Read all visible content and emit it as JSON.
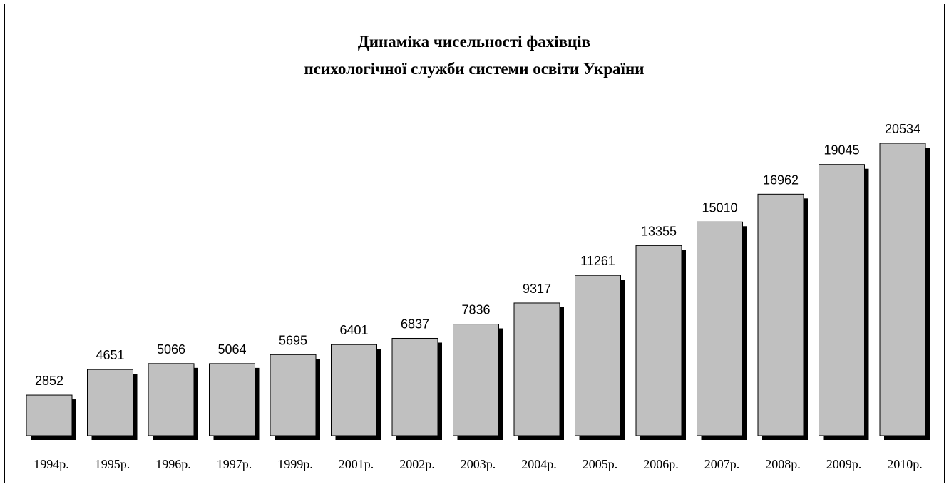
{
  "chart_data": {
    "type": "bar",
    "title": [
      "Динаміка чисельності фахівців",
      "психологічної служби системи освіти України"
    ],
    "categories": [
      "1994р.",
      "1995р.",
      "1996р.",
      "1997р.",
      "1999р.",
      "2001р.",
      "2002р.",
      "2003р.",
      "2004р.",
      "2005р.",
      "2006р.",
      "2007р.",
      "2008р.",
      "2009р.",
      "2010р."
    ],
    "values": [
      2852,
      4651,
      5066,
      5064,
      5695,
      6401,
      6837,
      7836,
      9317,
      11261,
      13355,
      15010,
      16962,
      19045,
      20534
    ],
    "color": "#c0c0c0",
    "shadow_color": "#000000"
  }
}
